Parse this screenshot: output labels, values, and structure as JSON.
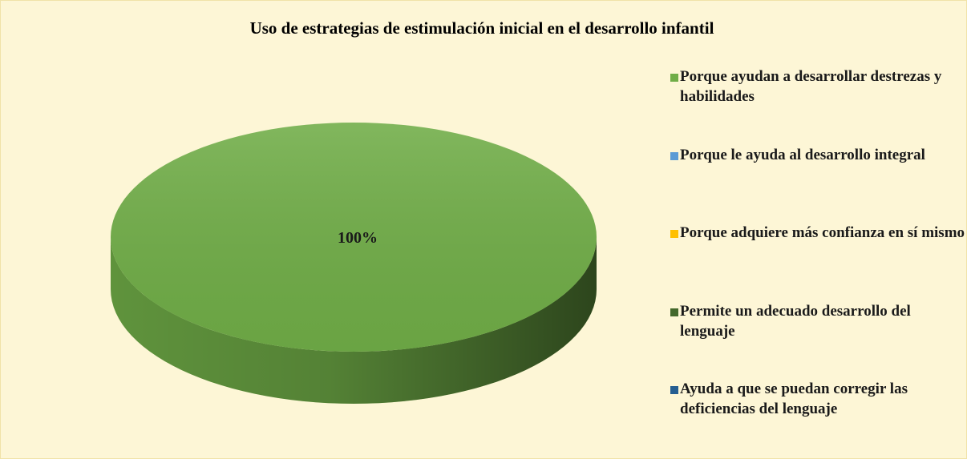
{
  "chart_data": {
    "type": "pie",
    "title": "Uso de estrategias de estimulación inicial en el desarrollo infantil",
    "categories": [
      "Porque ayudan a desarrollar destrezas y habilidades",
      "Porque le ayuda al desarrollo integral",
      "Porque adquiere más confianza en sí mismo",
      "Permite un adecuado desarrollo del lenguaje",
      "Ayuda a que se puedan corregir las deficiencias del lenguaje"
    ],
    "values": [
      100,
      0,
      0,
      0,
      0
    ],
    "value_labels": [
      "100%",
      null,
      null,
      null,
      null
    ],
    "colors": [
      "#70ad47",
      "#5b9bd5",
      "#ffc000",
      "#43682b",
      "#255e91"
    ],
    "legend": "right"
  }
}
